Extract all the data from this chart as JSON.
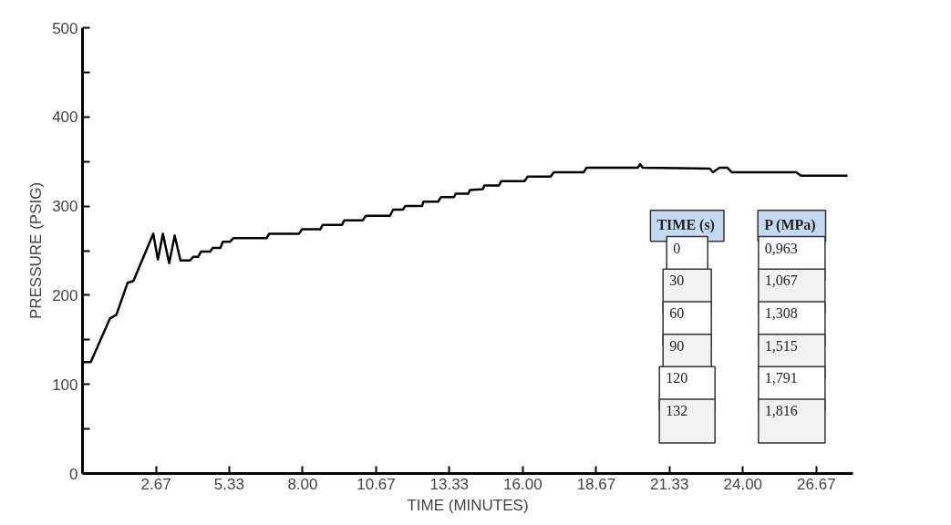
{
  "chart_data": {
    "type": "line",
    "xlabel": "TIME (MINUTES)",
    "ylabel": "PRESSURE (PSIG)",
    "xlim": [
      0,
      28
    ],
    "ylim": [
      0,
      500
    ],
    "xticks": [
      2.67,
      5.33,
      {
        "value": 8,
        "label": "8.00"
      },
      10.67,
      13.33,
      {
        "value": 16,
        "label": "16.00"
      },
      18.67,
      21.33,
      {
        "value": 24,
        "label": "24.00"
      },
      26.67
    ],
    "yticks": [
      0,
      {
        "value": 50,
        "label": null
      },
      100,
      {
        "value": 150,
        "label": null
      },
      200,
      {
        "value": 250,
        "label": null
      },
      300,
      {
        "value": 350,
        "label": null
      },
      400,
      {
        "value": 450,
        "label": null
      },
      500
    ],
    "grid": false,
    "marker": "none",
    "line_style": "solid",
    "series": [
      {
        "color": "#000000",
        "x": [
          0,
          0.3,
          1.0,
          1.23,
          1.64,
          1.85,
          2.57,
          2.74,
          2.92,
          3.15,
          3.35,
          3.56,
          3.91,
          4.02,
          4.2,
          4.31,
          4.64,
          4.73,
          5.01,
          5.1,
          5.36,
          5.48,
          6.7,
          6.78,
          7.86,
          7.98,
          8.64,
          8.73,
          9.43,
          9.51,
          10.18,
          10.3,
          11.17,
          11.29,
          11.64,
          11.73,
          12.34,
          12.39,
          12.92,
          13.03,
          13.5,
          13.56,
          14.02,
          14.08,
          14.55,
          14.6,
          15.13,
          15.22,
          16.06,
          16.18,
          17.01,
          17.13,
          18.21,
          18.32,
          20.18,
          20.26,
          20.36,
          22.8,
          22.91,
          23.15,
          23.44,
          23.59,
          25.94,
          26.11,
          27.8
        ],
        "values": [
          125,
          125,
          174,
          178,
          214,
          216,
          269,
          240,
          269,
          236,
          267,
          239,
          239,
          243,
          243,
          249,
          249,
          253,
          253,
          260,
          260,
          264,
          264,
          269,
          269,
          274,
          274,
          279,
          279,
          284,
          284,
          289,
          289,
          296,
          296,
          300,
          300,
          305,
          305,
          310,
          310,
          314,
          314,
          318,
          319,
          323,
          323,
          328,
          328,
          333,
          333,
          338,
          338,
          343,
          343,
          347,
          343,
          342,
          338,
          343,
          343,
          338,
          338,
          334,
          334
        ]
      }
    ],
    "annotations": [
      "TIME (s)",
      "P (MPa)",
      "0",
      "0,963",
      "30",
      "1,067",
      "60",
      "1,308",
      "90",
      "1,515",
      "120",
      "1,791",
      "132",
      "1,816"
    ]
  }
}
